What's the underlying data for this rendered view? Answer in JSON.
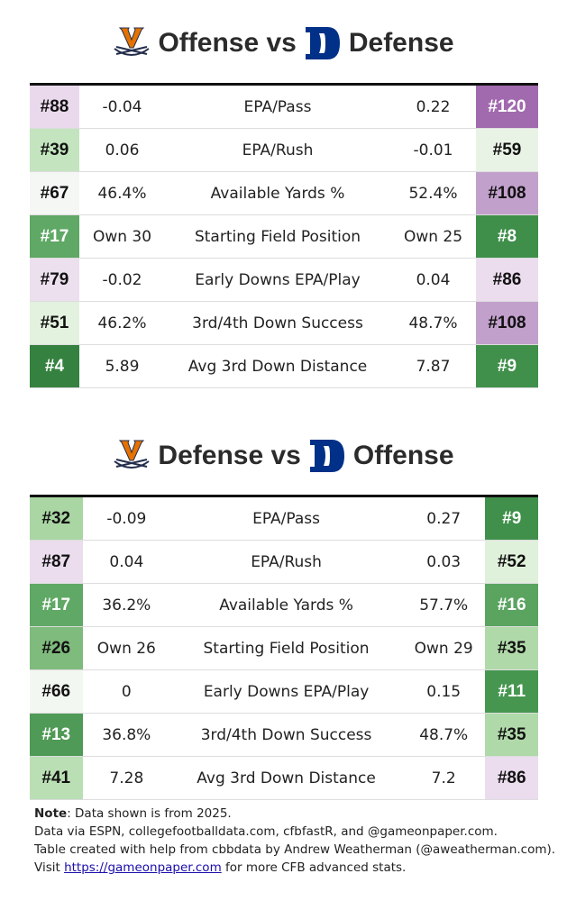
{
  "tables": [
    {
      "title_left": "Offense vs",
      "title_right": "Defense",
      "rows": [
        {
          "lrank": "#88",
          "lcolor": "#ead9ec",
          "lval": "-0.04",
          "stat": "EPA/Pass",
          "rval": "0.22",
          "rrank": "#120",
          "rcolor": "#a26aae"
        },
        {
          "lrank": "#39",
          "lcolor": "#c3e4be",
          "lval": "0.06",
          "stat": "EPA/Rush",
          "rval": "-0.01",
          "rrank": "#59",
          "rcolor": "#e8f3e5"
        },
        {
          "lrank": "#67",
          "lcolor": "#f4f7f3",
          "lval": "46.4%",
          "stat": "Available Yards %",
          "rval": "52.4%",
          "rrank": "#108",
          "rcolor": "#c2a0cc"
        },
        {
          "lrank": "#17",
          "lcolor": "#5fa865",
          "lval": "Own 30",
          "stat": "Starting Field Position",
          "rval": "Own 25",
          "rrank": "#8",
          "rcolor": "#3f8f4a"
        },
        {
          "lrank": "#79",
          "lcolor": "#ecdfee",
          "lval": "-0.02",
          "stat": "Early Downs EPA/Play",
          "rval": "0.04",
          "rrank": "#86",
          "rcolor": "#ebdcee"
        },
        {
          "lrank": "#51",
          "lcolor": "#e3f1df",
          "lval": "46.2%",
          "stat": "3rd/4th Down Success",
          "rval": "48.7%",
          "rrank": "#108",
          "rcolor": "#c2a0cc"
        },
        {
          "lrank": "#4",
          "lcolor": "#35813f",
          "lval": "5.89",
          "stat": "Avg 3rd Down Distance",
          "rval": "7.87",
          "rrank": "#9",
          "rcolor": "#40904b"
        }
      ]
    },
    {
      "title_left": "Defense vs",
      "title_right": "Offense",
      "rows": [
        {
          "lrank": "#32",
          "lcolor": "#a9d6a3",
          "lval": "-0.09",
          "stat": "EPA/Pass",
          "rval": "0.27",
          "rrank": "#9",
          "rcolor": "#40904b"
        },
        {
          "lrank": "#87",
          "lcolor": "#ebdcee",
          "lval": "0.04",
          "stat": "EPA/Rush",
          "rval": "0.03",
          "rrank": "#52",
          "rcolor": "#dff0db"
        },
        {
          "lrank": "#17",
          "lcolor": "#5fa865",
          "lval": "36.2%",
          "stat": "Available Yards %",
          "rval": "57.7%",
          "rrank": "#16",
          "rcolor": "#5aa460"
        },
        {
          "lrank": "#26",
          "lcolor": "#7fbb7d",
          "lval": "Own 26",
          "stat": "Starting Field Position",
          "rval": "Own 29",
          "rrank": "#35",
          "rcolor": "#b0d9a9"
        },
        {
          "lrank": "#66",
          "lcolor": "#f3f7f2",
          "lval": "0",
          "stat": "Early Downs EPA/Play",
          "rval": "0.15",
          "rrank": "#11",
          "rcolor": "#469650"
        },
        {
          "lrank": "#13",
          "lcolor": "#4f9a56",
          "lval": "36.8%",
          "stat": "3rd/4th Down Success",
          "rval": "48.7%",
          "rrank": "#35",
          "rcolor": "#b0d9a9"
        },
        {
          "lrank": "#41",
          "lcolor": "#badfb4",
          "lval": "7.28",
          "stat": "Avg 3rd Down Distance",
          "rval": "7.2",
          "rrank": "#86",
          "rcolor": "#ebdcee"
        }
      ]
    }
  ],
  "note": {
    "bold": "Note",
    "line1": ": Data shown is from 2025.",
    "line2": "Data via ESPN, collegefootballdata.com, cfbfastR, and @gameonpaper.com.",
    "line3": "Table created with help from cbbdata by Andrew Weatherman (@aweatherman.com).",
    "visit": "Visit ",
    "link": "https://gameonpaper.com",
    "after": " for more CFB advanced stats."
  },
  "colors": {
    "uva_orange": "#e57200",
    "uva_navy": "#232d4b",
    "duke_blue": "#003087"
  }
}
